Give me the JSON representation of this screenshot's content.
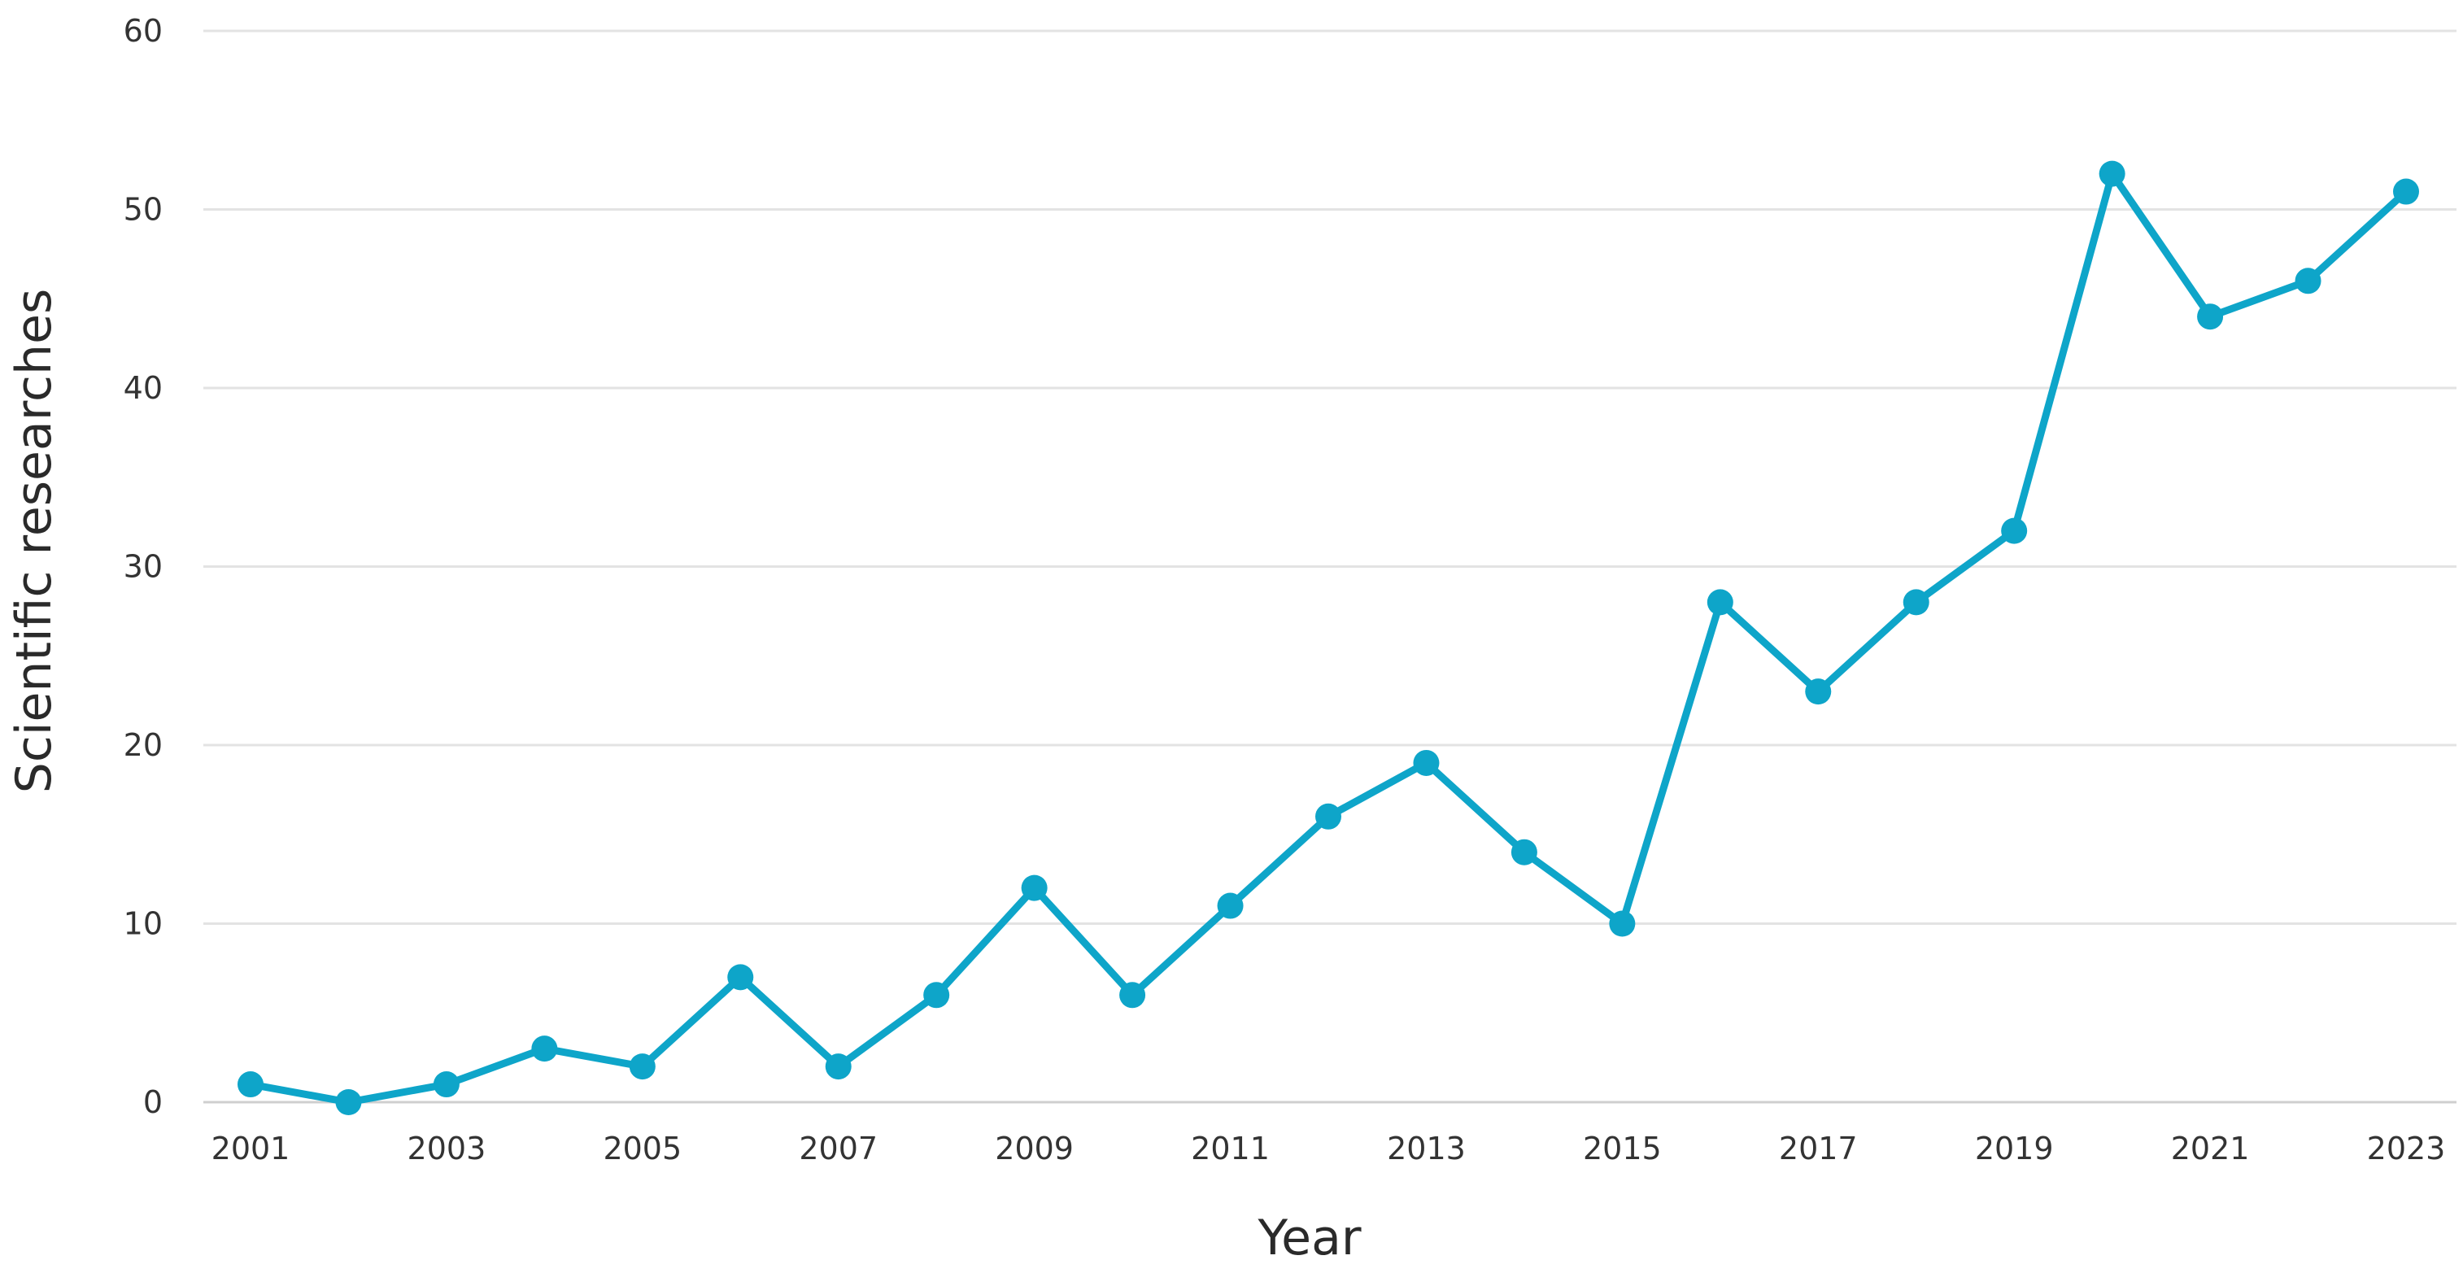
{
  "chart_data": {
    "type": "line",
    "title": "",
    "xlabel": "Year",
    "ylabel": "Scientific researches",
    "x": [
      2001,
      2002,
      2003,
      2004,
      2005,
      2006,
      2007,
      2008,
      2009,
      2010,
      2011,
      2012,
      2013,
      2014,
      2015,
      2016,
      2017,
      2018,
      2019,
      2020,
      2021,
      2022,
      2023
    ],
    "series": [
      {
        "values": [
          1,
          0,
          1,
          3,
          2,
          7,
          2,
          6,
          12,
          6,
          11,
          16,
          19,
          14,
          10,
          28,
          23,
          28,
          32,
          52,
          44,
          46,
          51
        ]
      }
    ],
    "x_tick_labels": [
      "2001",
      "2003",
      "2005",
      "2007",
      "2009",
      "2011",
      "2013",
      "2015",
      "2017",
      "2019",
      "2021",
      "2023"
    ],
    "y_tick_labels": [
      "0",
      "10",
      "20",
      "30",
      "40",
      "50",
      "60"
    ],
    "ylim": [
      0,
      60
    ],
    "xlim": [
      2001,
      2023
    ],
    "grid": true,
    "legend": "none",
    "colors": {
      "series": "#0ea5c9",
      "grid": "#e3e3e3",
      "text": "#333333"
    }
  }
}
